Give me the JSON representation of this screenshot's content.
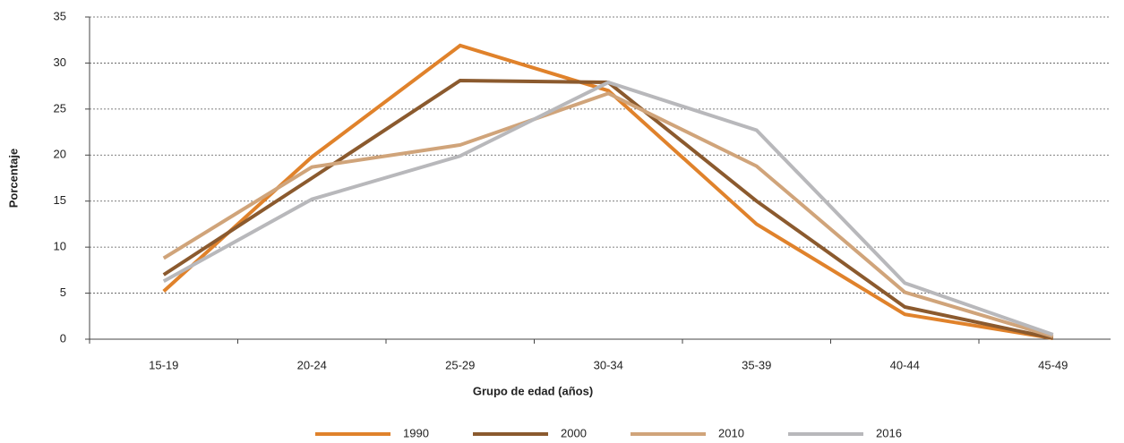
{
  "chart_data": {
    "type": "line",
    "y_label": "Porcentaje",
    "x_label": "Grupo de edad (años)",
    "categories": [
      "15-19",
      "20-24",
      "25-29",
      "30-34",
      "35-39",
      "40-44",
      "45-49"
    ],
    "series": [
      {
        "name": "1990",
        "color": "#e0822b",
        "values": [
          5.2,
          19.8,
          31.9,
          27.0,
          12.5,
          2.7,
          0.1
        ]
      },
      {
        "name": "2000",
        "color": "#8b5a2e",
        "values": [
          7.0,
          17.5,
          28.1,
          27.9,
          15.0,
          3.5,
          0.1
        ]
      },
      {
        "name": "2010",
        "color": "#d0a47a",
        "values": [
          8.8,
          18.7,
          21.1,
          26.7,
          18.8,
          5.1,
          0.3
        ]
      },
      {
        "name": "2016",
        "color": "#b8b8bb",
        "values": [
          6.3,
          15.2,
          19.9,
          27.9,
          22.7,
          6.1,
          0.5
        ]
      }
    ],
    "ylim": [
      0,
      35
    ],
    "yticks": [
      0,
      5,
      10,
      15,
      20,
      25,
      30,
      35
    ],
    "grid": true,
    "legend": "bottom"
  }
}
